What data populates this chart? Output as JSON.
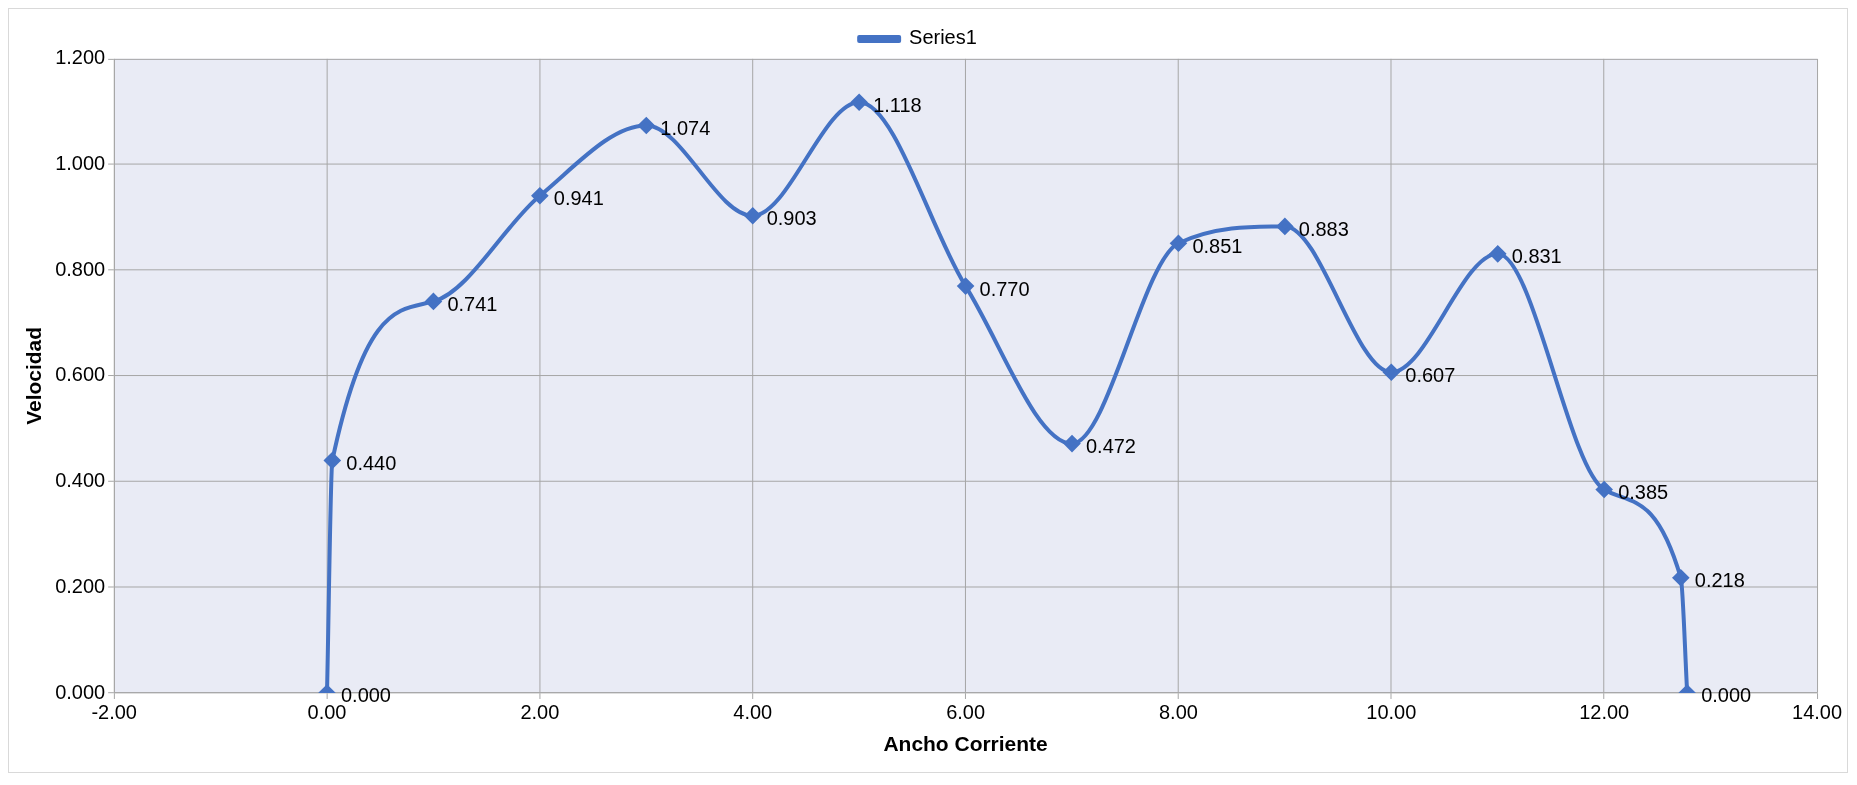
{
  "chart_data": {
    "type": "line",
    "xlabel": "Ancho Corriente",
    "ylabel": "Velocidad",
    "x": [
      0,
      0.05,
      1,
      2,
      3,
      4,
      5,
      6,
      7,
      8,
      9,
      10,
      11,
      12,
      12.72,
      12.78
    ],
    "series": [
      {
        "name": "Series1",
        "color": "#4472c4",
        "values": [
          0,
          0.44,
          0.741,
          0.941,
          1.074,
          0.903,
          1.118,
          0.77,
          0.472,
          0.851,
          0.883,
          0.607,
          0.831,
          0.385,
          0.218,
          0
        ],
        "value_labels": [
          "0.000",
          "0.440",
          "0.741",
          "0.941",
          "1.074",
          "0.903",
          "1.118",
          "0.770",
          "0.472",
          "0.851",
          "0.883",
          "0.607",
          "0.831",
          "0.385",
          "0.218",
          "0.000"
        ]
      }
    ],
    "xlim": [
      -2,
      14
    ],
    "xticks": [
      {
        "value": -2,
        "label": "-2.00"
      },
      {
        "value": 0,
        "label": "0.00"
      },
      {
        "value": 2,
        "label": "2.00"
      },
      {
        "value": 4,
        "label": "4.00"
      },
      {
        "value": 6,
        "label": "6.00"
      },
      {
        "value": 8,
        "label": "8.00"
      },
      {
        "value": 10,
        "label": "10.00"
      },
      {
        "value": 12,
        "label": "12.00"
      },
      {
        "value": 14,
        "label": "14.00"
      }
    ],
    "ylim": [
      0,
      1.2
    ],
    "yticks": [
      {
        "value": 0,
        "label": "0.000"
      },
      {
        "value": 0.2,
        "label": "0.200"
      },
      {
        "value": 0.4,
        "label": "0.400"
      },
      {
        "value": 0.6,
        "label": "0.600"
      },
      {
        "value": 0.8,
        "label": "0.800"
      },
      {
        "value": 1,
        "label": "1.000"
      },
      {
        "value": 1.2,
        "label": "1.200"
      }
    ],
    "grid": true,
    "legend": "top",
    "marker": "diamond",
    "line_style": "solid"
  }
}
